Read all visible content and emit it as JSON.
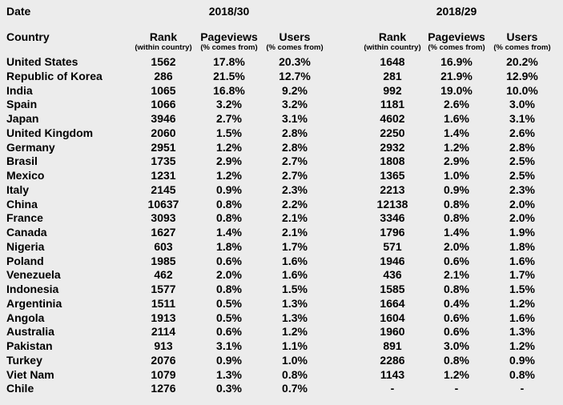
{
  "header": {
    "date_label": "Date",
    "period_left": "2018/30",
    "period_right": "2018/29"
  },
  "columns": {
    "country": "Country",
    "rank": "Rank",
    "rank_sub": "(within country)",
    "pageviews": "Pageviews",
    "pageviews_sub": "(% comes from)",
    "users": "Users",
    "users_sub": "(% comes from)"
  },
  "colors": {
    "background": "#ececec",
    "text": "#000000"
  },
  "chart_data": {
    "type": "table",
    "title": "Rank, Pageviews and Users by country for weeks 2018/30 and 2018/29",
    "periods": [
      "2018/30",
      "2018/29"
    ],
    "column_headers": [
      "Country",
      "Rank (within country)",
      "Pageviews (% comes from)",
      "Users (% comes from)",
      "Rank (within country)",
      "Pageviews (% comes from)",
      "Users (% comes from)"
    ],
    "rows": [
      [
        "United States",
        "1562",
        "17.8%",
        "20.3%",
        "1648",
        "16.9%",
        "20.2%"
      ],
      [
        "Republic of Korea",
        "286",
        "21.5%",
        "12.7%",
        "281",
        "21.9%",
        "12.9%"
      ],
      [
        "India",
        "1065",
        "16.8%",
        "9.2%",
        "992",
        "19.0%",
        "10.0%"
      ],
      [
        "Spain",
        "1066",
        "3.2%",
        "3.2%",
        "1181",
        "2.6%",
        "3.0%"
      ],
      [
        "Japan",
        "3946",
        "2.7%",
        "3.1%",
        "4602",
        "1.6%",
        "3.1%"
      ],
      [
        "United Kingdom",
        "2060",
        "1.5%",
        "2.8%",
        "2250",
        "1.4%",
        "2.6%"
      ],
      [
        "Germany",
        "2951",
        "1.2%",
        "2.8%",
        "2932",
        "1.2%",
        "2.8%"
      ],
      [
        "Brasil",
        "1735",
        "2.9%",
        "2.7%",
        "1808",
        "2.9%",
        "2.5%"
      ],
      [
        "Mexico",
        "1231",
        "1.2%",
        "2.7%",
        "1365",
        "1.0%",
        "2.5%"
      ],
      [
        "Italy",
        "2145",
        "0.9%",
        "2.3%",
        "2213",
        "0.9%",
        "2.3%"
      ],
      [
        "China",
        "10637",
        "0.8%",
        "2.2%",
        "12138",
        "0.8%",
        "2.0%"
      ],
      [
        "France",
        "3093",
        "0.8%",
        "2.1%",
        "3346",
        "0.8%",
        "2.0%"
      ],
      [
        "Canada",
        "1627",
        "1.4%",
        "2.1%",
        "1796",
        "1.4%",
        "1.9%"
      ],
      [
        "Nigeria",
        "603",
        "1.8%",
        "1.7%",
        "571",
        "2.0%",
        "1.8%"
      ],
      [
        "Poland",
        "1985",
        "0.6%",
        "1.6%",
        "1946",
        "0.6%",
        "1.6%"
      ],
      [
        "Venezuela",
        "462",
        "2.0%",
        "1.6%",
        "436",
        "2.1%",
        "1.7%"
      ],
      [
        "Indonesia",
        "1577",
        "0.8%",
        "1.5%",
        "1585",
        "0.8%",
        "1.5%"
      ],
      [
        "Argentinia",
        "1511",
        "0.5%",
        "1.3%",
        "1664",
        "0.4%",
        "1.2%"
      ],
      [
        "Angola",
        "1913",
        "0.5%",
        "1.3%",
        "1604",
        "0.6%",
        "1.6%"
      ],
      [
        "Australia",
        "2114",
        "0.6%",
        "1.2%",
        "1960",
        "0.6%",
        "1.3%"
      ],
      [
        "Pakistan",
        "913",
        "3.1%",
        "1.1%",
        "891",
        "3.0%",
        "1.2%"
      ],
      [
        "Turkey",
        "2076",
        "0.9%",
        "1.0%",
        "2286",
        "0.8%",
        "0.9%"
      ],
      [
        "Viet Nam",
        "1079",
        "1.3%",
        "0.8%",
        "1143",
        "1.2%",
        "0.8%"
      ],
      [
        "Chile",
        "1276",
        "0.3%",
        "0.7%",
        "-",
        "-",
        "-"
      ]
    ]
  }
}
